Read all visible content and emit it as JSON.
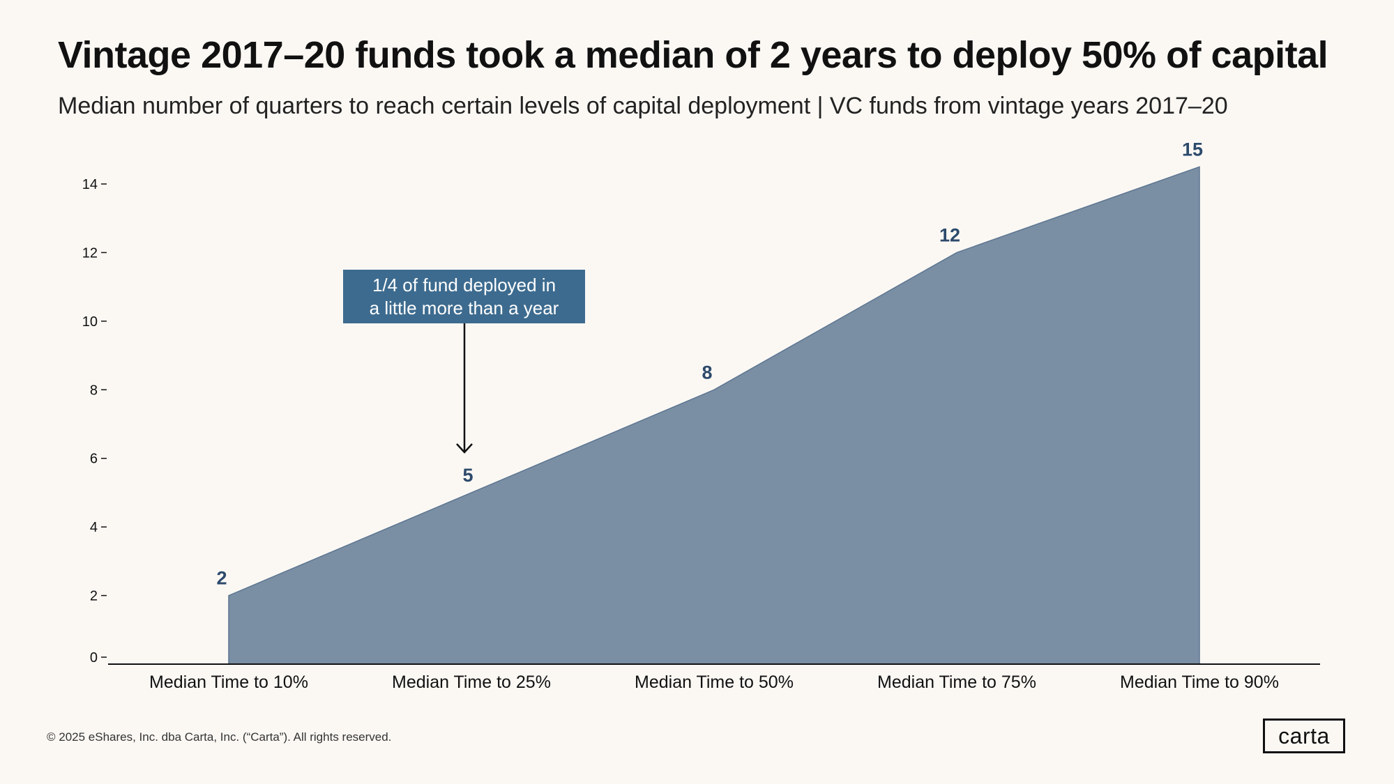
{
  "header": {
    "title": "Vintage 2017–20 funds took a median of 2 years to deploy 50% of capital",
    "subtitle": "Median number of quarters to reach certain levels of capital deployment | VC funds from vintage years 2017–20"
  },
  "annotation": {
    "line1": "1/4 of fund deployed in",
    "line2": "a little more than a year"
  },
  "footer": {
    "copyright": "© 2025 eShares, Inc. dba Carta, Inc. (“Carta”). All rights reserved.",
    "logo": "carta"
  },
  "colors": {
    "area_fill": "#7b8fa4",
    "area_stroke": "#5c7590",
    "label": "#2c4a6b",
    "callout_bg": "#3d6b8f",
    "axis": "#111111",
    "background": "#fbf8f4"
  },
  "chart_data": {
    "type": "area",
    "title": "Vintage 2017–20 funds took a median of 2 years to deploy 50% of capital",
    "xlabel": "",
    "ylabel": "",
    "categories": [
      "Median Time to 10%",
      "Median Time to 25%",
      "Median Time to 50%",
      "Median Time to 75%",
      "Median Time to 90%"
    ],
    "values": [
      2,
      5,
      8,
      12,
      14.5
    ],
    "data_labels": [
      "2",
      "5",
      "8",
      "12",
      "15"
    ],
    "ylim": [
      0,
      15
    ],
    "yticks": [
      0,
      2,
      4,
      6,
      8,
      10,
      12,
      14
    ],
    "grid": false,
    "legend": "none"
  }
}
